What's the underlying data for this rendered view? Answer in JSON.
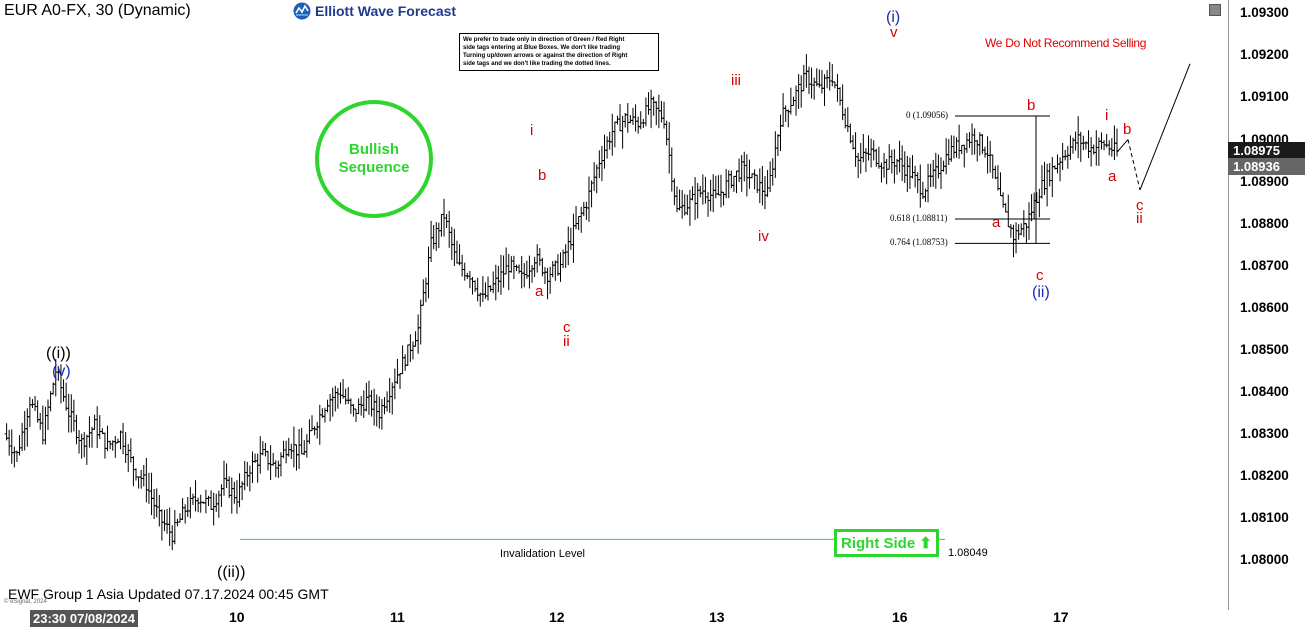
{
  "header": {
    "symbol_title": "EUR A0-FX, 30 (Dynamic)",
    "brand": "Elliott Wave Forecast",
    "notice_lines": [
      "We prefer to trade only in direction of Green / Red Right",
      "side tags entering at Blue Boxes. We don't like trading",
      "Turning up/down arrows or against the direction of Right",
      "side tags and we don't like trading the dotted lines."
    ],
    "warning": "We Do Not Recommend Selling"
  },
  "badges": {
    "bullish": [
      "Bullish",
      "Sequence"
    ],
    "right_side": "Right Side"
  },
  "footer": {
    "update": "EWF Group 1 Asia Updated 07.17.2024 00:45 GMT",
    "copyright": "© eSignal, 2024",
    "cursor_time": "23:30 07/08/2024"
  },
  "colors": {
    "bullish_green": "#2ed52e",
    "wave_red": "#d40000",
    "wave_blue": "#1a2fb0",
    "warning_red": "#e00000"
  },
  "chart_data": {
    "type": "ohlc",
    "interval": "30",
    "ylim": [
      1.0795,
      1.0932
    ],
    "y_ticks": [
      "1.09300",
      "1.09200",
      "1.09100",
      "1.09000",
      "1.08900",
      "1.08800",
      "1.08700",
      "1.08600",
      "1.08500",
      "1.08400",
      "1.08300",
      "1.08200",
      "1.08100",
      "1.08000"
    ],
    "x_ticks": [
      "10",
      "11",
      "12",
      "13",
      "16",
      "17"
    ],
    "last_price": "1.08975",
    "bid_price": "1.08936",
    "invalidation": {
      "label": "Invalidation Level",
      "value": "1.08049",
      "price": 1.08049
    },
    "fib_levels": [
      {
        "label": "0 (1.09056)",
        "price": 1.09056
      },
      {
        "label": "0.618 (1.08811)",
        "price": 1.08811
      },
      {
        "label": "0.764 (1.08753)",
        "price": 1.08753
      }
    ],
    "anchors": [
      [
        1.083,
        "down"
      ],
      [
        1.0825,
        "down"
      ],
      [
        1.0838,
        "up"
      ],
      [
        1.083,
        "down"
      ],
      [
        1.0845,
        "up"
      ],
      [
        1.0835,
        "down"
      ],
      [
        1.0828,
        "down"
      ],
      [
        1.0832,
        "up"
      ],
      [
        1.0827,
        "down"
      ],
      [
        1.083,
        "up"
      ],
      [
        1.0822,
        "down"
      ],
      [
        1.0818,
        "down"
      ],
      [
        1.081,
        "down"
      ],
      [
        1.0806,
        "down"
      ],
      [
        1.0812,
        "up"
      ],
      [
        1.0815,
        "up"
      ],
      [
        1.0813,
        "down"
      ],
      [
        1.0818,
        "up"
      ],
      [
        1.0815,
        "down"
      ],
      [
        1.0822,
        "up"
      ],
      [
        1.0825,
        "up"
      ],
      [
        1.0822,
        "down"
      ],
      [
        1.0828,
        "up"
      ],
      [
        1.0825,
        "down"
      ],
      [
        1.0832,
        "up"
      ],
      [
        1.0838,
        "up"
      ],
      [
        1.084,
        "up"
      ],
      [
        1.0835,
        "down"
      ],
      [
        1.0838,
        "up"
      ],
      [
        1.0835,
        "down"
      ],
      [
        1.0842,
        "up"
      ],
      [
        1.0848,
        "up"
      ],
      [
        1.0855,
        "up"
      ],
      [
        1.0875,
        "up"
      ],
      [
        1.0882,
        "up"
      ],
      [
        1.087,
        "down"
      ],
      [
        1.0868,
        "down"
      ],
      [
        1.0862,
        "down"
      ],
      [
        1.0866,
        "up"
      ],
      [
        1.087,
        "up"
      ],
      [
        1.0867,
        "down"
      ],
      [
        1.0872,
        "up"
      ],
      [
        1.0868,
        "down"
      ],
      [
        1.087,
        "up"
      ],
      [
        1.0878,
        "up"
      ],
      [
        1.0885,
        "up"
      ],
      [
        1.0895,
        "up"
      ],
      [
        1.0902,
        "up"
      ],
      [
        1.0905,
        "up"
      ],
      [
        1.0904,
        "down"
      ],
      [
        1.0908,
        "up"
      ],
      [
        1.0905,
        "down"
      ],
      [
        1.0883,
        "down"
      ],
      [
        1.0885,
        "up"
      ],
      [
        1.0888,
        "up"
      ],
      [
        1.0886,
        "down"
      ],
      [
        1.089,
        "up"
      ],
      [
        1.0893,
        "up"
      ],
      [
        1.089,
        "down"
      ],
      [
        1.0887,
        "down"
      ],
      [
        1.0905,
        "up"
      ],
      [
        1.091,
        "up"
      ],
      [
        1.0915,
        "up"
      ],
      [
        1.0912,
        "down"
      ],
      [
        1.0915,
        "up"
      ],
      [
        1.0905,
        "down"
      ],
      [
        1.0895,
        "down"
      ],
      [
        1.0897,
        "up"
      ],
      [
        1.0894,
        "down"
      ],
      [
        1.0895,
        "up"
      ],
      [
        1.0892,
        "down"
      ],
      [
        1.0888,
        "down"
      ],
      [
        1.0892,
        "up"
      ],
      [
        1.0897,
        "up"
      ],
      [
        1.0899,
        "up"
      ],
      [
        1.0901,
        "up"
      ],
      [
        1.0897,
        "down"
      ],
      [
        1.0885,
        "down"
      ],
      [
        1.0877,
        "down"
      ],
      [
        1.088,
        "up"
      ],
      [
        1.0888,
        "up"
      ],
      [
        1.0893,
        "up"
      ],
      [
        1.0897,
        "up"
      ],
      [
        1.09,
        "up"
      ],
      [
        1.0898,
        "down"
      ],
      [
        1.0899,
        "up"
      ],
      [
        1.0897,
        "down"
      ]
    ],
    "projection": [
      [
        1.09,
        "up"
      ],
      [
        1.0888,
        "down"
      ],
      [
        1.0918,
        "up"
      ]
    ],
    "wave_labels": [
      {
        "text": "((i))",
        "color": "black"
      },
      {
        "text": "(v)",
        "color": "blue"
      },
      {
        "text": "((ii))",
        "color": "black"
      },
      {
        "text": "i",
        "color": "red"
      },
      {
        "text": "b",
        "color": "red"
      },
      {
        "text": "a",
        "color": "red"
      },
      {
        "text": "c",
        "color": "red"
      },
      {
        "text": "ii",
        "color": "red"
      },
      {
        "text": "iii",
        "color": "red"
      },
      {
        "text": "iv",
        "color": "red"
      },
      {
        "text": "(i)",
        "color": "blue"
      },
      {
        "text": "v",
        "color": "red"
      },
      {
        "text": "b",
        "color": "red"
      },
      {
        "text": "a",
        "color": "red"
      },
      {
        "text": "c",
        "color": "red"
      },
      {
        "text": "(ii)",
        "color": "blue"
      },
      {
        "text": "i",
        "color": "red"
      },
      {
        "text": "b",
        "color": "red"
      },
      {
        "text": "a",
        "color": "red"
      },
      {
        "text": "c",
        "color": "red"
      },
      {
        "text": "ii",
        "color": "red"
      }
    ]
  }
}
